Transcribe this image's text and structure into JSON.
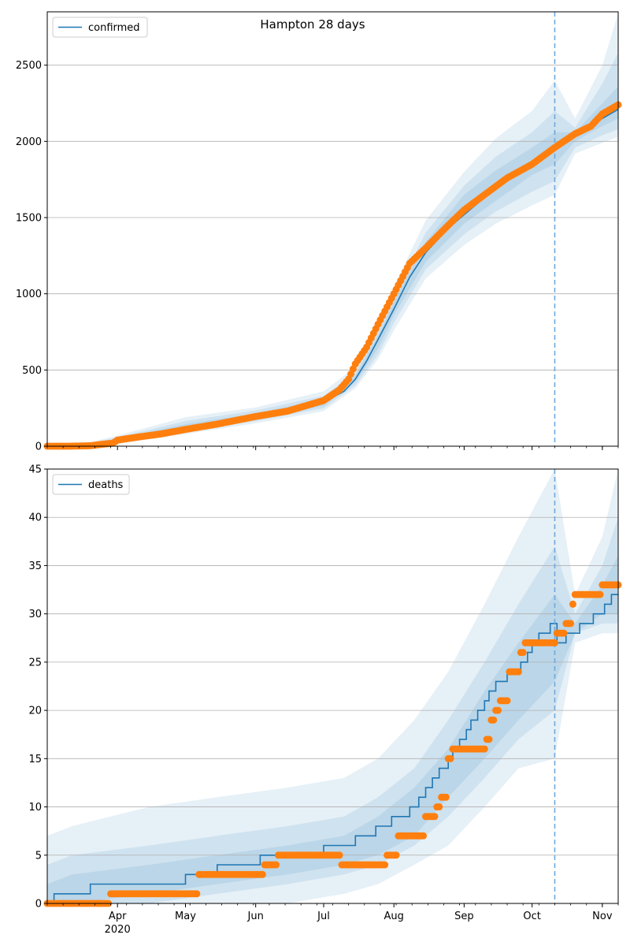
{
  "figure": {
    "title": "Hampton 28 days"
  },
  "chart_data": [
    {
      "type": "line",
      "name": "confirmed",
      "legend": {
        "label": "confirmed",
        "placement": "upper-left"
      },
      "xlim": [
        "2020-03-01",
        "2020-11-08"
      ],
      "ylim": [
        0,
        2850
      ],
      "yticks": [
        0,
        500,
        1000,
        1500,
        2000,
        2500
      ],
      "xticks": [
        {
          "date": "2020-04-01",
          "label": "Apr"
        },
        {
          "date": "2020-05-01",
          "label": "May"
        },
        {
          "date": "2020-06-01",
          "label": "Jun"
        },
        {
          "date": "2020-07-01",
          "label": "Jul"
        },
        {
          "date": "2020-08-01",
          "label": "Aug"
        },
        {
          "date": "2020-09-01",
          "label": "Sep"
        },
        {
          "date": "2020-10-01",
          "label": "Oct"
        },
        {
          "date": "2020-11-01",
          "label": "Nov"
        }
      ],
      "xtick_year_label": "2020",
      "grid": "y",
      "forecast_start": "2020-10-11",
      "colors": {
        "model": "#1f77b4",
        "observed": "#ff7f0e",
        "band": "#1f77b4",
        "vline": "#6fa8dc"
      },
      "model_line": [
        [
          "2020-03-01",
          0
        ],
        [
          "2020-03-15",
          2
        ],
        [
          "2020-03-25",
          20
        ],
        [
          "2020-04-01",
          40
        ],
        [
          "2020-04-10",
          70
        ],
        [
          "2020-04-20",
          95
        ],
        [
          "2020-05-01",
          125
        ],
        [
          "2020-05-15",
          150
        ],
        [
          "2020-06-01",
          195
        ],
        [
          "2020-06-15",
          235
        ],
        [
          "2020-07-01",
          290
        ],
        [
          "2020-07-10",
          360
        ],
        [
          "2020-07-15",
          440
        ],
        [
          "2020-07-20",
          560
        ],
        [
          "2020-07-25",
          700
        ],
        [
          "2020-08-01",
          900
        ],
        [
          "2020-08-08",
          1110
        ],
        [
          "2020-08-15",
          1270
        ],
        [
          "2020-08-25",
          1430
        ],
        [
          "2020-09-05",
          1570
        ],
        [
          "2020-09-15",
          1690
        ],
        [
          "2020-09-25",
          1790
        ],
        [
          "2020-10-05",
          1880
        ],
        [
          "2020-10-11",
          1955
        ],
        [
          "2020-10-20",
          2040
        ],
        [
          "2020-11-01",
          2150
        ],
        [
          "2020-11-08",
          2210
        ]
      ],
      "bands": [
        {
          "label": "outer",
          "x": [
            "2020-03-01",
            "2020-03-15",
            "2020-04-01",
            "2020-05-01",
            "2020-06-01",
            "2020-07-01",
            "2020-07-15",
            "2020-07-25",
            "2020-08-01",
            "2020-08-15",
            "2020-09-01",
            "2020-09-15",
            "2020-10-01",
            "2020-10-11",
            "2020-10-20",
            "2020-11-01",
            "2020-11-08"
          ],
          "upper": [
            2,
            10,
            70,
            190,
            255,
            360,
            520,
            820,
            1050,
            1480,
            1800,
            2020,
            2200,
            2400,
            2150,
            2500,
            2840
          ],
          "lower": [
            0,
            0,
            15,
            80,
            150,
            230,
            380,
            570,
            760,
            1100,
            1320,
            1460,
            1580,
            1650,
            1920,
            1990,
            2030
          ]
        },
        {
          "label": "middle",
          "x": [
            "2020-03-01",
            "2020-03-15",
            "2020-04-01",
            "2020-05-01",
            "2020-06-01",
            "2020-07-01",
            "2020-07-15",
            "2020-07-25",
            "2020-08-01",
            "2020-08-15",
            "2020-09-01",
            "2020-09-15",
            "2020-10-01",
            "2020-10-11",
            "2020-10-20",
            "2020-11-01",
            "2020-11-08"
          ],
          "upper": [
            1,
            6,
            58,
            165,
            235,
            330,
            485,
            760,
            980,
            1400,
            1710,
            1900,
            2060,
            2200,
            2090,
            2380,
            2580
          ],
          "lower": [
            0,
            0,
            22,
            92,
            165,
            250,
            400,
            600,
            810,
            1160,
            1390,
            1540,
            1670,
            1740,
            1960,
            2040,
            2080
          ]
        },
        {
          "label": "inner",
          "x": [
            "2020-03-01",
            "2020-03-15",
            "2020-04-01",
            "2020-05-01",
            "2020-06-01",
            "2020-07-01",
            "2020-07-15",
            "2020-07-25",
            "2020-08-01",
            "2020-08-15",
            "2020-09-01",
            "2020-09-15",
            "2020-10-01",
            "2020-10-11",
            "2020-10-20",
            "2020-11-01",
            "2020-11-08"
          ],
          "upper": [
            1,
            4,
            50,
            145,
            215,
            310,
            465,
            725,
            945,
            1340,
            1650,
            1810,
            1960,
            2060,
            2060,
            2250,
            2360
          ],
          "lower": [
            0,
            0,
            30,
            105,
            180,
            265,
            420,
            640,
            860,
            1210,
            1460,
            1610,
            1780,
            1850,
            2000,
            2100,
            2150
          ]
        }
      ],
      "observed": [
        [
          "2020-03-01",
          0
        ],
        [
          "2020-03-10",
          0
        ],
        [
          "2020-03-20",
          3
        ],
        [
          "2020-03-25",
          12
        ],
        [
          "2020-03-30",
          20
        ],
        [
          "2020-04-01",
          40
        ],
        [
          "2020-04-10",
          60
        ],
        [
          "2020-04-20",
          80
        ],
        [
          "2020-05-01",
          110
        ],
        [
          "2020-05-15",
          145
        ],
        [
          "2020-06-01",
          195
        ],
        [
          "2020-06-15",
          230
        ],
        [
          "2020-07-01",
          300
        ],
        [
          "2020-07-08",
          370
        ],
        [
          "2020-07-12",
          440
        ],
        [
          "2020-07-15",
          540
        ],
        [
          "2020-07-20",
          650
        ],
        [
          "2020-07-25",
          800
        ],
        [
          "2020-08-01",
          1000
        ],
        [
          "2020-08-08",
          1200
        ],
        [
          "2020-08-15",
          1300
        ],
        [
          "2020-08-25",
          1450
        ],
        [
          "2020-09-01",
          1550
        ],
        [
          "2020-09-10",
          1650
        ],
        [
          "2020-09-20",
          1760
        ],
        [
          "2020-10-01",
          1850
        ],
        [
          "2020-10-11",
          1960
        ],
        [
          "2020-10-20",
          2050
        ],
        [
          "2020-10-27",
          2100
        ],
        [
          "2020-11-01",
          2180
        ],
        [
          "2020-11-08",
          2240
        ]
      ]
    },
    {
      "type": "line",
      "name": "deaths",
      "legend": {
        "label": "deaths",
        "placement": "upper-left"
      },
      "xlim": [
        "2020-03-01",
        "2020-11-08"
      ],
      "ylim": [
        0,
        45
      ],
      "yticks": [
        0,
        5,
        10,
        15,
        20,
        25,
        30,
        35,
        40,
        45
      ],
      "xticks": [
        {
          "date": "2020-04-01",
          "label": "Apr"
        },
        {
          "date": "2020-05-01",
          "label": "May"
        },
        {
          "date": "2020-06-01",
          "label": "Jun"
        },
        {
          "date": "2020-07-01",
          "label": "Jul"
        },
        {
          "date": "2020-08-01",
          "label": "Aug"
        },
        {
          "date": "2020-09-01",
          "label": "Sep"
        },
        {
          "date": "2020-10-01",
          "label": "Oct"
        },
        {
          "date": "2020-11-01",
          "label": "Nov"
        }
      ],
      "xtick_year_label": "2020",
      "grid": "y",
      "forecast_start": "2020-10-11",
      "colors": {
        "model": "#1f77b4",
        "observed": "#ff7f0e",
        "band": "#1f77b4",
        "vline": "#6fa8dc"
      },
      "model_line": [
        [
          "2020-03-01",
          0
        ],
        [
          "2020-03-04",
          1
        ],
        [
          "2020-03-20",
          2
        ],
        [
          "2020-05-01",
          3
        ],
        [
          "2020-05-15",
          4
        ],
        [
          "2020-06-03",
          5
        ],
        [
          "2020-07-01",
          6
        ],
        [
          "2020-07-15",
          7
        ],
        [
          "2020-07-24",
          8
        ],
        [
          "2020-07-31",
          9
        ],
        [
          "2020-08-08",
          10
        ],
        [
          "2020-08-12",
          11
        ],
        [
          "2020-08-15",
          12
        ],
        [
          "2020-08-18",
          13
        ],
        [
          "2020-08-21",
          14
        ],
        [
          "2020-08-25",
          15
        ],
        [
          "2020-08-27",
          16
        ],
        [
          "2020-08-30",
          17
        ],
        [
          "2020-09-02",
          18
        ],
        [
          "2020-09-04",
          19
        ],
        [
          "2020-09-07",
          20
        ],
        [
          "2020-09-10",
          21
        ],
        [
          "2020-09-12",
          22
        ],
        [
          "2020-09-15",
          23
        ],
        [
          "2020-09-20",
          24
        ],
        [
          "2020-09-26",
          25
        ],
        [
          "2020-09-29",
          26
        ],
        [
          "2020-10-01",
          27
        ],
        [
          "2020-10-04",
          28
        ],
        [
          "2020-10-09",
          29
        ],
        [
          "2020-10-12",
          27
        ],
        [
          "2020-10-16",
          28
        ],
        [
          "2020-10-22",
          29
        ],
        [
          "2020-10-28",
          30
        ],
        [
          "2020-11-02",
          31
        ],
        [
          "2020-11-05",
          32
        ],
        [
          "2020-11-08",
          32
        ]
      ],
      "bands": [
        {
          "label": "outer",
          "x": [
            "2020-03-01",
            "2020-03-12",
            "2020-04-15",
            "2020-05-15",
            "2020-06-15",
            "2020-07-10",
            "2020-07-25",
            "2020-08-10",
            "2020-08-25",
            "2020-09-10",
            "2020-09-25",
            "2020-10-11",
            "2020-10-20",
            "2020-11-01",
            "2020-11-08"
          ],
          "upper": [
            7,
            8,
            10,
            11,
            12,
            13,
            15,
            19,
            24,
            31,
            38,
            45,
            32,
            38,
            45
          ],
          "lower": [
            0,
            0,
            0,
            0,
            0,
            1,
            2,
            4,
            6,
            10,
            14,
            15,
            27,
            28,
            28
          ]
        },
        {
          "label": "middle",
          "x": [
            "2020-03-01",
            "2020-03-12",
            "2020-04-15",
            "2020-05-15",
            "2020-06-15",
            "2020-07-10",
            "2020-07-25",
            "2020-08-10",
            "2020-08-25",
            "2020-09-10",
            "2020-09-25",
            "2020-10-11",
            "2020-10-20",
            "2020-11-01",
            "2020-11-08"
          ],
          "upper": [
            4,
            5,
            6,
            7,
            8,
            9,
            11,
            14,
            19,
            25,
            31,
            37,
            30,
            35,
            40
          ],
          "lower": [
            0,
            0,
            0,
            1,
            2,
            3,
            4,
            6,
            9,
            13,
            17,
            20,
            28,
            29,
            29
          ]
        },
        {
          "label": "inner",
          "x": [
            "2020-03-01",
            "2020-03-12",
            "2020-04-15",
            "2020-05-15",
            "2020-06-15",
            "2020-07-10",
            "2020-07-25",
            "2020-08-10",
            "2020-08-25",
            "2020-09-10",
            "2020-09-25",
            "2020-10-11",
            "2020-10-20",
            "2020-11-01",
            "2020-11-08"
          ],
          "upper": [
            2,
            3,
            4,
            5,
            6,
            7,
            9,
            12,
            16,
            22,
            27,
            32,
            29,
            33,
            36
          ],
          "lower": [
            0,
            0,
            1,
            2,
            3,
            4,
            5,
            7,
            11,
            15,
            19,
            23,
            28,
            30,
            30
          ]
        }
      ],
      "observed": [
        [
          "2020-03-01",
          0
        ],
        [
          "2020-03-28",
          0
        ],
        [
          "2020-03-29",
          1
        ],
        [
          "2020-05-06",
          1
        ],
        [
          "2020-05-07",
          3
        ],
        [
          "2020-06-04",
          3
        ],
        [
          "2020-06-05",
          4
        ],
        [
          "2020-06-10",
          4
        ],
        [
          "2020-06-11",
          5
        ],
        [
          "2020-07-08",
          5
        ],
        [
          "2020-07-09",
          4
        ],
        [
          "2020-07-28",
          4
        ],
        [
          "2020-07-29",
          5
        ],
        [
          "2020-08-02",
          5
        ],
        [
          "2020-08-03",
          7
        ],
        [
          "2020-08-14",
          7
        ],
        [
          "2020-08-15",
          9
        ],
        [
          "2020-08-19",
          9
        ],
        [
          "2020-08-20",
          10
        ],
        [
          "2020-08-22",
          11
        ],
        [
          "2020-08-25",
          15
        ],
        [
          "2020-08-27",
          16
        ],
        [
          "2020-09-10",
          16
        ],
        [
          "2020-09-11",
          17
        ],
        [
          "2020-09-13",
          19
        ],
        [
          "2020-09-15",
          20
        ],
        [
          "2020-09-17",
          21
        ],
        [
          "2020-09-21",
          24
        ],
        [
          "2020-09-26",
          26
        ],
        [
          "2020-09-28",
          27
        ],
        [
          "2020-10-11",
          27
        ],
        [
          "2020-10-12",
          28
        ],
        [
          "2020-10-16",
          29
        ],
        [
          "2020-10-19",
          31
        ],
        [
          "2020-10-20",
          32
        ],
        [
          "2020-10-31",
          32
        ],
        [
          "2020-11-01",
          33
        ],
        [
          "2020-11-08",
          33
        ]
      ]
    }
  ]
}
